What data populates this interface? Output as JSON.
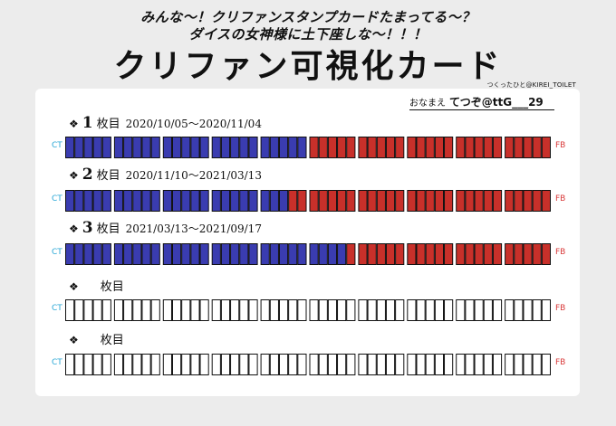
{
  "header": {
    "line1": "みんな～！クリファンスタンプカードたまってる～？",
    "line2": "ダイスの女神様に土下座しな～！！！",
    "title": "クリファン可視化カード",
    "credit": "つくったひと@KIREI_TOILET"
  },
  "name": {
    "label": "おなまえ",
    "value": "てつぞ@ttG___29"
  },
  "labels": {
    "ct": "CT",
    "fb": "FB"
  },
  "colors": {
    "ct": "#3a3cb0",
    "fb": "#c8302a",
    "empty": "#ffffff",
    "border": "#111111"
  },
  "cards": [
    {
      "bullet": "❖",
      "number": "1",
      "mai": "枚目",
      "dates": "2020/10/05～2020/11/04",
      "ct_count": 25,
      "total": 50
    },
    {
      "bullet": "❖",
      "number": "2",
      "mai": "枚目",
      "dates": "2020/11/10～2021/03/13",
      "ct_count": 23,
      "total": 50
    },
    {
      "bullet": "❖",
      "number": "3",
      "mai": "枚目",
      "dates": "2021/03/13～2021/09/17",
      "ct_count": 29,
      "total": 50
    },
    {
      "bullet": "❖",
      "number": "",
      "mai": "枚目",
      "dates": "",
      "ct_count": 0,
      "total": 50,
      "empty": true
    },
    {
      "bullet": "❖",
      "number": "",
      "mai": "枚目",
      "dates": "",
      "ct_count": 0,
      "total": 50,
      "empty": true
    }
  ]
}
